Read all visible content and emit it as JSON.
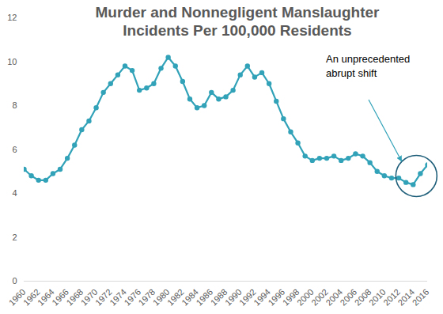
{
  "chart_data": {
    "type": "line",
    "title": "Murder and Nonnegligent Manslaughter Incidents Per 100,000 Residents",
    "x": [
      1960,
      1961,
      1962,
      1963,
      1964,
      1965,
      1966,
      1967,
      1968,
      1969,
      1970,
      1971,
      1972,
      1973,
      1974,
      1975,
      1976,
      1977,
      1978,
      1979,
      1980,
      1981,
      1982,
      1983,
      1984,
      1985,
      1986,
      1987,
      1988,
      1989,
      1990,
      1991,
      1992,
      1993,
      1994,
      1995,
      1996,
      1997,
      1998,
      1999,
      2000,
      2001,
      2002,
      2003,
      2004,
      2005,
      2006,
      2007,
      2008,
      2009,
      2010,
      2011,
      2012,
      2013,
      2014,
      2015,
      2016
    ],
    "values": [
      5.1,
      4.8,
      4.6,
      4.6,
      4.9,
      5.1,
      5.6,
      6.2,
      6.9,
      7.3,
      7.9,
      8.6,
      9.0,
      9.4,
      9.8,
      9.6,
      8.7,
      8.8,
      9.0,
      9.7,
      10.2,
      9.8,
      9.1,
      8.3,
      7.9,
      8.0,
      8.6,
      8.3,
      8.4,
      8.7,
      9.4,
      9.8,
      9.3,
      9.5,
      9.0,
      8.2,
      7.4,
      6.8,
      6.3,
      5.7,
      5.5,
      5.6,
      5.6,
      5.7,
      5.5,
      5.6,
      5.8,
      5.7,
      5.4,
      5.0,
      4.8,
      4.7,
      4.7,
      4.5,
      4.4,
      4.9,
      5.3
    ],
    "color": "#31a2b8",
    "marker": "circle",
    "xlim": [
      1960,
      2016
    ],
    "xticks": [
      1960,
      1962,
      1964,
      1966,
      1968,
      1970,
      1972,
      1974,
      1976,
      1978,
      1980,
      1982,
      1984,
      1986,
      1988,
      1990,
      1992,
      1994,
      1996,
      1998,
      2000,
      2002,
      2004,
      2006,
      2008,
      2010,
      2012,
      2014,
      2016
    ],
    "ylim": [
      0,
      12
    ],
    "yticks": [
      0,
      2,
      4,
      6,
      8,
      10,
      12
    ],
    "grid": false,
    "annotation": "An unprecedented abrupt shift"
  }
}
